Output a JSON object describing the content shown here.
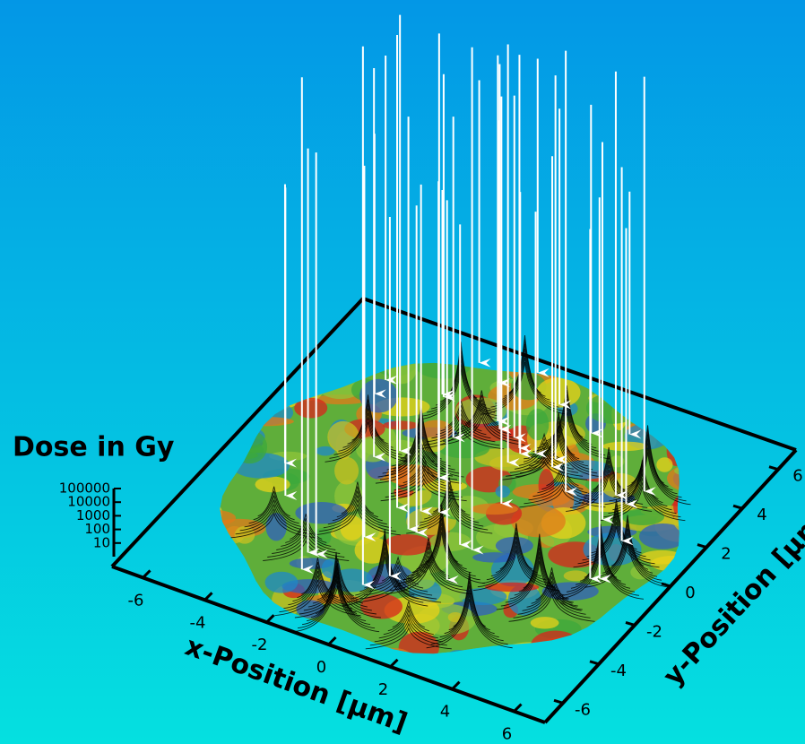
{
  "chart_data": {
    "type": "surface3d",
    "z_title": "Dose in Gy",
    "zscale": "log",
    "zlim": [
      1,
      100000
    ],
    "zticks": [
      10,
      100,
      1000,
      10000,
      100000
    ],
    "x_title": "x-Position [μm]",
    "y_title": "y-Position [μm]",
    "xlim": [
      -7,
      7
    ],
    "ylim": [
      -7,
      7
    ],
    "xticks": [
      -6,
      -4,
      -2,
      0,
      2,
      4,
      6
    ],
    "yticks": [
      -6,
      -4,
      -2,
      0,
      2,
      4,
      6
    ]
  }
}
